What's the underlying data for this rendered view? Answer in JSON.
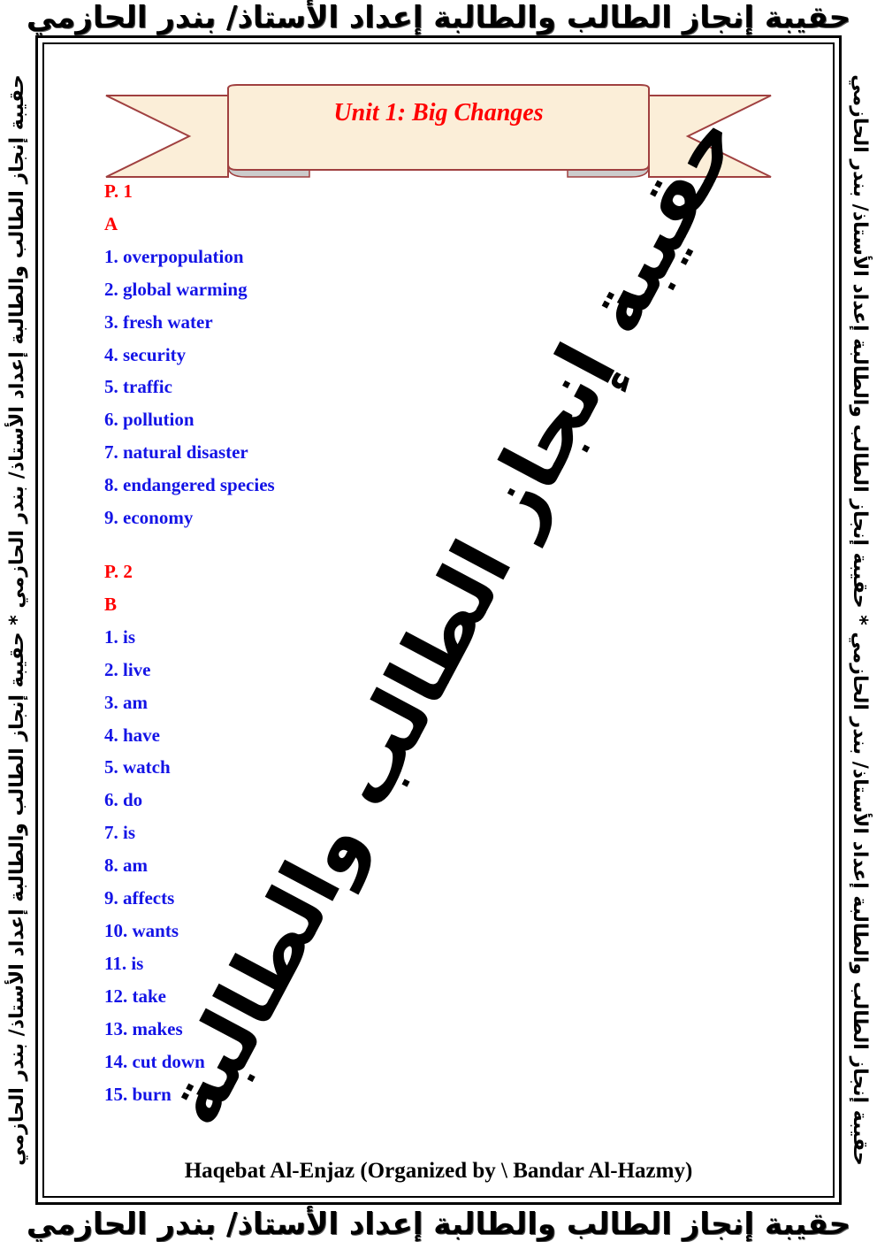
{
  "header_text": "حقيبة إنجاز الطالب والطالبة إعداد الأستاذ/ بندر الحازمي",
  "side_text": "حقيبة إنجاز الطالب والطالبة إعداد الأستاذ/ بندر الحازمي  *  حقيبة إنجاز الطالب والطالبة إعداد الأستاذ/ بندر الحازمي",
  "watermark": "حقيبة إنجاز الطالب والطالبة",
  "title": "Unit 1: Big Changes",
  "sections": [
    {
      "page": "P. 1",
      "exercise": "A",
      "items": [
        "1. overpopulation",
        "2. global warming",
        "3. fresh water",
        "4. security",
        "5. traffic",
        "6. pollution",
        "7. natural disaster",
        "8. endangered species",
        "9. economy"
      ]
    },
    {
      "page": "P. 2",
      "exercise": "B",
      "items": [
        "1. is",
        "2. live",
        "3. am",
        "4. have",
        "5. watch",
        "6. do",
        "7. is",
        "8. am",
        "9. affects",
        "10. wants",
        "11. is",
        "12. take",
        "13. makes",
        "14. cut down",
        "15. burn"
      ]
    }
  ],
  "footer": "Haqebat Al-Enjaz (Organized by \\ Bandar Al-Hazmy)",
  "colors": {
    "heading": "#ff0000",
    "answers": "#1414e6",
    "banner_fill": "#fbeed8",
    "banner_stroke": "#a04040"
  }
}
